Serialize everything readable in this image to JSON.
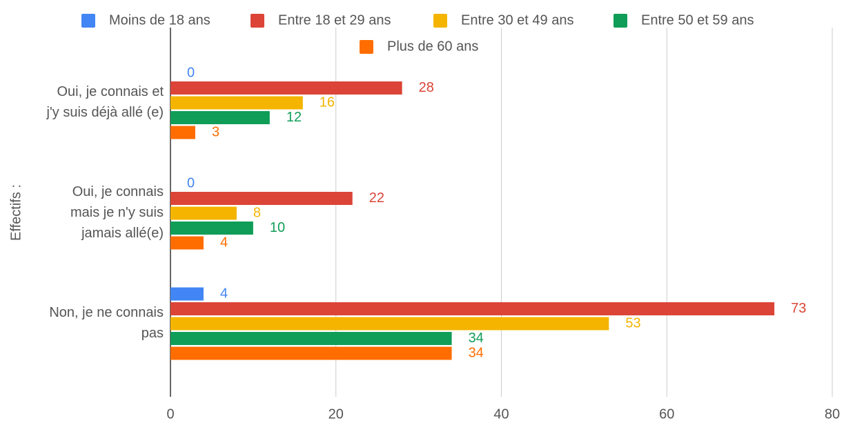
{
  "chart_data": {
    "type": "bar",
    "orientation": "horizontal",
    "y_label": "Effectifs :",
    "categories": [
      "Oui, je connais et j'y suis déjà allé (e)",
      "Oui, je connais mais je n'y suis jamais allé(e)",
      "Non, je ne connais pas"
    ],
    "series": [
      {
        "name": "Moins de 18 ans",
        "color": "#4285f4",
        "values": [
          0,
          0,
          4
        ]
      },
      {
        "name": "Entre 18 et 29 ans",
        "color": "#db4437",
        "values": [
          28,
          22,
          73
        ]
      },
      {
        "name": "Entre 30 et 49 ans",
        "color": "#f4b400",
        "values": [
          16,
          8,
          53
        ]
      },
      {
        "name": "Entre 50 et 59 ans",
        "color": "#0f9d58",
        "values": [
          12,
          10,
          34
        ]
      },
      {
        "name": "Plus de 60 ans",
        "color": "#ff6d00",
        "values": [
          3,
          4,
          34
        ]
      }
    ],
    "xlim": [
      0,
      80
    ],
    "xticks": [
      0,
      20,
      40,
      60,
      80
    ],
    "grid": true,
    "legend": "top"
  }
}
